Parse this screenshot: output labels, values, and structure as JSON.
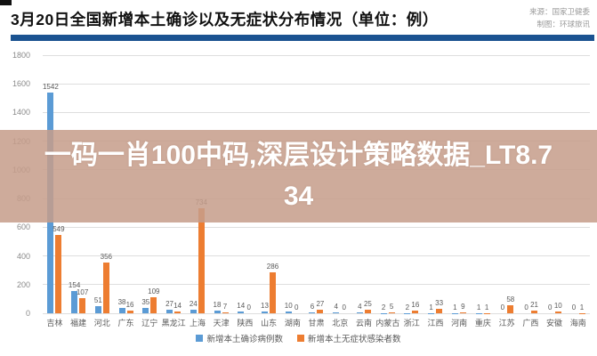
{
  "header": {
    "title": "3月20日全国新增本土确诊以及无症状分布情况（单位：例）",
    "source_line1": "来源：国家卫健委",
    "source_line2": "制图：环球旅讯"
  },
  "overlay": {
    "text": "一码一肖100中码,深层设计策略数据_LT8.734"
  },
  "colors": {
    "confirmed_blue": "#5b9bd5",
    "asymptomatic_orange": "#ed7d31",
    "divider_navy": "#1b5391",
    "overlay_tan": "#c69d8b"
  },
  "chart_data": {
    "type": "bar",
    "title": "3月20日全国新增本土确诊以及无症状分布情况（单位：例）",
    "categories": [
      "吉林",
      "福建",
      "河北",
      "广东",
      "辽宁",
      "黑龙江",
      "上海",
      "天津",
      "陕西",
      "山东",
      "湖南",
      "甘肃",
      "北京",
      "云南",
      "内蒙古",
      "浙江",
      "江西",
      "河南",
      "重庆",
      "江苏",
      "广西",
      "安徽",
      "海南"
    ],
    "series": [
      {
        "name": "新增本土确诊病例数",
        "color": "#5b9bd5",
        "values": [
          1542,
          154,
          51,
          38,
          35,
          27,
          24,
          18,
          14,
          13,
          10,
          6,
          4,
          4,
          2,
          2,
          1,
          1,
          1,
          0,
          0,
          0,
          0
        ]
      },
      {
        "name": "新增本土无症状感染者数",
        "color": "#ed7d31",
        "values": [
          549,
          107,
          356,
          16,
          109,
          14,
          734,
          7,
          0,
          286,
          0,
          27,
          0,
          25,
          5,
          16,
          33,
          9,
          1,
          58,
          21,
          10,
          1
        ]
      }
    ],
    "xlabel": "",
    "ylabel": "",
    "ylim": [
      0,
      1800
    ],
    "yticks": [
      0,
      200,
      400,
      600,
      800,
      1000,
      1200,
      1400,
      1600,
      1800
    ],
    "grid": true,
    "legend_position": "bottom"
  }
}
